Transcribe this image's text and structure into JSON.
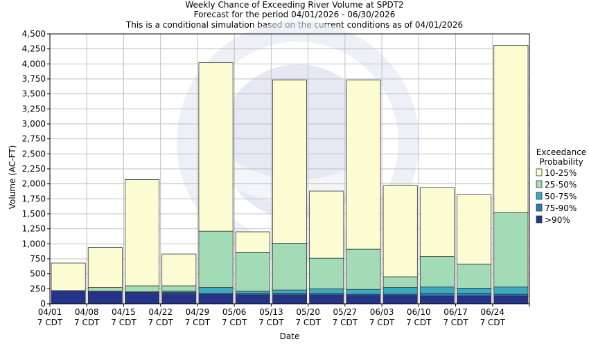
{
  "chart_data": {
    "type": "bar",
    "stacked": true,
    "title": [
      "Weekly Chance of Exceeding River Volume at SPDT2",
      "Forecast for the period 04/01/2026 - 06/30/2026",
      "This is a conditional simulation based on the current conditions as of 04/01/2026"
    ],
    "xlabel": "Date",
    "ylabel": "Volume (AC-FT)",
    "ylim": [
      0,
      4500
    ],
    "yticks": [
      "0",
      "250",
      "500",
      "750",
      "1,000",
      "1,250",
      "1,500",
      "1,750",
      "2,000",
      "2,250",
      "2,500",
      "2,750",
      "3,000",
      "3,250",
      "3,500",
      "3,750",
      "4,000",
      "4,250",
      "4,500"
    ],
    "xtick_lines": [
      "04/01",
      "04/08",
      "04/15",
      "04/22",
      "04/29",
      "05/06",
      "05/13",
      "05/20",
      "05/27",
      "06/03",
      "06/10",
      "06/17",
      "06/24"
    ],
    "xtick_suffix": "7 CDT",
    "grid": true,
    "legend": {
      "title": [
        "Exceedance",
        "Probability"
      ],
      "placement": "right",
      "entries": [
        "10-25%",
        "25-50%",
        "50-75%",
        "75-90%",
        ">90%"
      ]
    },
    "series": [
      {
        "name": ">90%",
        "color": "#25338a",
        "values": [
          220,
          200,
          190,
          170,
          160,
          150,
          150,
          150,
          140,
          140,
          130,
          130,
          130
        ]
      },
      {
        "name": "75-90%",
        "color": "#2e7cb8",
        "values": [
          0,
          10,
          10,
          20,
          10,
          20,
          20,
          20,
          20,
          20,
          40,
          40,
          30
        ]
      },
      {
        "name": "50-75%",
        "color": "#3aabc2",
        "values": [
          0,
          0,
          0,
          20,
          100,
          40,
          60,
          80,
          80,
          110,
          110,
          90,
          120
        ]
      },
      {
        "name": "25-50%",
        "color": "#a3dbb7",
        "values": [
          0,
          60,
          100,
          90,
          940,
          650,
          780,
          510,
          670,
          180,
          510,
          400,
          1240
        ]
      },
      {
        "name": "10-25%",
        "color": "#fcfcd2",
        "values": [
          460,
          670,
          1770,
          530,
          2810,
          340,
          2720,
          1120,
          2820,
          1520,
          1150,
          1160,
          2790
        ]
      }
    ],
    "colors": {
      "background": "#ffffff",
      "grid": "#c0c0c0",
      "bar_outline": "#333333",
      "watermark": "#c8cde8"
    }
  }
}
